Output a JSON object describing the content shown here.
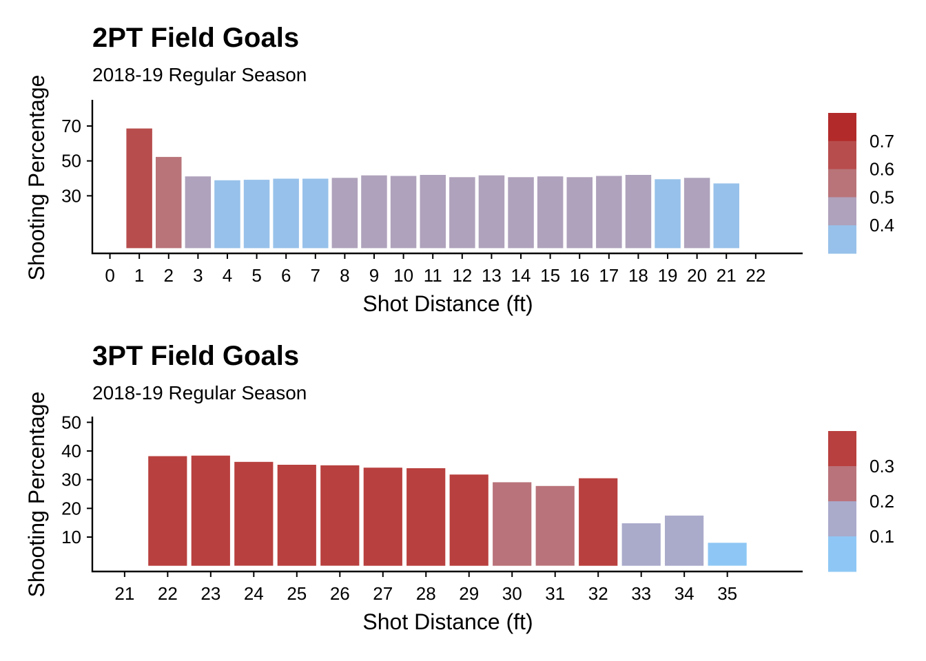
{
  "chart_data": [
    {
      "type": "bar",
      "title": "2PT Field Goals",
      "subtitle": "2018-19 Regular Season",
      "xlabel": "Shot Distance (ft)",
      "ylabel": "Shooting Percentage",
      "x_ticks": [
        "0",
        "1",
        "2",
        "3",
        "4",
        "5",
        "6",
        "7",
        "8",
        "9",
        "10",
        "11",
        "12",
        "13",
        "14",
        "15",
        "16",
        "17",
        "18",
        "19",
        "20",
        "21",
        "22"
      ],
      "xlim": [
        -0.6,
        23.6
      ],
      "y_ticks": [
        30,
        50,
        70
      ],
      "ylim": [
        -3,
        85
      ],
      "categories": [
        1,
        2,
        3,
        4,
        5,
        6,
        7,
        8,
        9,
        10,
        11,
        12,
        13,
        14,
        15,
        16,
        17,
        18,
        19,
        20,
        21
      ],
      "values": [
        68.6,
        52.3,
        41.1,
        38.9,
        39.2,
        39.8,
        39.8,
        40.3,
        41.7,
        41.4,
        42.0,
        40.7,
        41.7,
        40.7,
        41.1,
        40.7,
        41.4,
        42.0,
        39.5,
        40.3,
        37.1
      ],
      "fill_values": [
        0.686,
        0.523,
        0.411,
        0.389,
        0.392,
        0.398,
        0.398,
        0.403,
        0.417,
        0.414,
        0.42,
        0.407,
        0.417,
        0.407,
        0.411,
        0.407,
        0.414,
        0.42,
        0.395,
        0.403,
        0.371
      ],
      "bar_color_map": [
        {
          "min": 0.7,
          "color": "#b22a2a"
        },
        {
          "min": 0.6,
          "color": "#b84d4d"
        },
        {
          "min": 0.5,
          "color": "#b97479"
        },
        {
          "min": 0.4,
          "color": "#afa2bc"
        },
        {
          "min": 0.0,
          "color": "#97c1ea"
        }
      ],
      "legend": {
        "position": "right",
        "labels": [
          "0.7",
          "0.6",
          "0.5",
          "0.4"
        ],
        "colors_top_to_bottom": [
          "#b22a2a",
          "#b84d4d",
          "#b97479",
          "#afa2bc",
          "#97c1ea"
        ]
      }
    },
    {
      "type": "bar",
      "title": "3PT Field Goals",
      "subtitle": "2018-19 Regular Season",
      "xlabel": "Shot Distance (ft)",
      "ylabel": "Shooting Percentage",
      "x_ticks": [
        "21",
        "22",
        "23",
        "24",
        "25",
        "26",
        "27",
        "28",
        "29",
        "30",
        "31",
        "32",
        "33",
        "34",
        "35"
      ],
      "xlim": [
        20.25,
        36.75
      ],
      "y_ticks": [
        10,
        20,
        30,
        40,
        50
      ],
      "ylim": [
        -2,
        52
      ],
      "categories": [
        22,
        23,
        24,
        25,
        26,
        27,
        28,
        29,
        30,
        31,
        32,
        33,
        34,
        35
      ],
      "values": [
        38.2,
        38.4,
        36.2,
        35.2,
        35.0,
        34.2,
        34.0,
        31.8,
        29.1,
        27.8,
        30.5,
        14.8,
        17.5,
        8.0
      ],
      "fill_values": [
        0.382,
        0.384,
        0.362,
        0.352,
        0.35,
        0.342,
        0.34,
        0.318,
        0.291,
        0.278,
        0.305,
        0.148,
        0.175,
        0.08
      ],
      "bar_color_map": [
        {
          "min": 0.3,
          "color": "#b8403e"
        },
        {
          "min": 0.2,
          "color": "#b9737a"
        },
        {
          "min": 0.1,
          "color": "#aaaacb"
        },
        {
          "min": 0.0,
          "color": "#8ec7f5"
        }
      ],
      "legend": {
        "position": "right",
        "labels": [
          "0.3",
          "0.2",
          "0.1"
        ],
        "colors_top_to_bottom": [
          "#b8403e",
          "#b9737a",
          "#aaaacb",
          "#8ec7f5"
        ]
      }
    }
  ]
}
